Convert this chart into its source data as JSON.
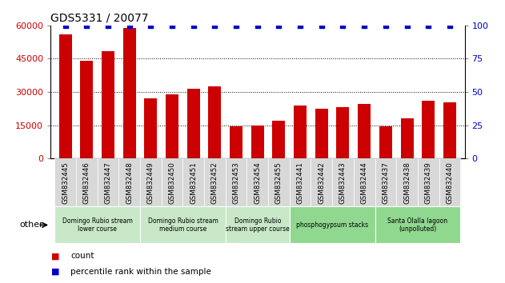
{
  "title": "GDS5331 / 20077",
  "categories": [
    "GSM832445",
    "GSM832446",
    "GSM832447",
    "GSM832448",
    "GSM832449",
    "GSM832450",
    "GSM832451",
    "GSM832452",
    "GSM832453",
    "GSM832454",
    "GSM832455",
    "GSM832441",
    "GSM832442",
    "GSM832443",
    "GSM832444",
    "GSM832437",
    "GSM832438",
    "GSM832439",
    "GSM832440"
  ],
  "counts": [
    56000,
    44000,
    48500,
    59000,
    27000,
    29000,
    31500,
    32500,
    14500,
    15000,
    17000,
    24000,
    22500,
    23000,
    24500,
    14500,
    18000,
    26000,
    25500
  ],
  "percentile": [
    100,
    100,
    100,
    100,
    100,
    100,
    100,
    100,
    100,
    100,
    100,
    100,
    100,
    100,
    100,
    100,
    100,
    100,
    100
  ],
  "bar_color": "#cc0000",
  "dot_color": "#0000cc",
  "ylim_left": [
    0,
    60000
  ],
  "ylim_right": [
    0,
    100
  ],
  "yticks_left": [
    0,
    15000,
    30000,
    45000,
    60000
  ],
  "yticks_right": [
    0,
    25,
    50,
    75,
    100
  ],
  "bg_color": "#ffffff",
  "groups": [
    {
      "label": "Domingo Rubio stream\nlower course",
      "start": 0,
      "end": 4,
      "color": "#c8e8c8"
    },
    {
      "label": "Domingo Rubio stream\nmedium course",
      "start": 4,
      "end": 8,
      "color": "#c8e8c8"
    },
    {
      "label": "Domingo Rubio\nstream upper course",
      "start": 8,
      "end": 11,
      "color": "#c8e8c8"
    },
    {
      "label": "phosphogypsum stacks",
      "start": 11,
      "end": 15,
      "color": "#90d890"
    },
    {
      "label": "Santa Olalla lagoon\n(unpolluted)",
      "start": 15,
      "end": 19,
      "color": "#90d890"
    }
  ],
  "legend_count_label": "count",
  "legend_pct_label": "percentile rank within the sample",
  "other_label": "other"
}
